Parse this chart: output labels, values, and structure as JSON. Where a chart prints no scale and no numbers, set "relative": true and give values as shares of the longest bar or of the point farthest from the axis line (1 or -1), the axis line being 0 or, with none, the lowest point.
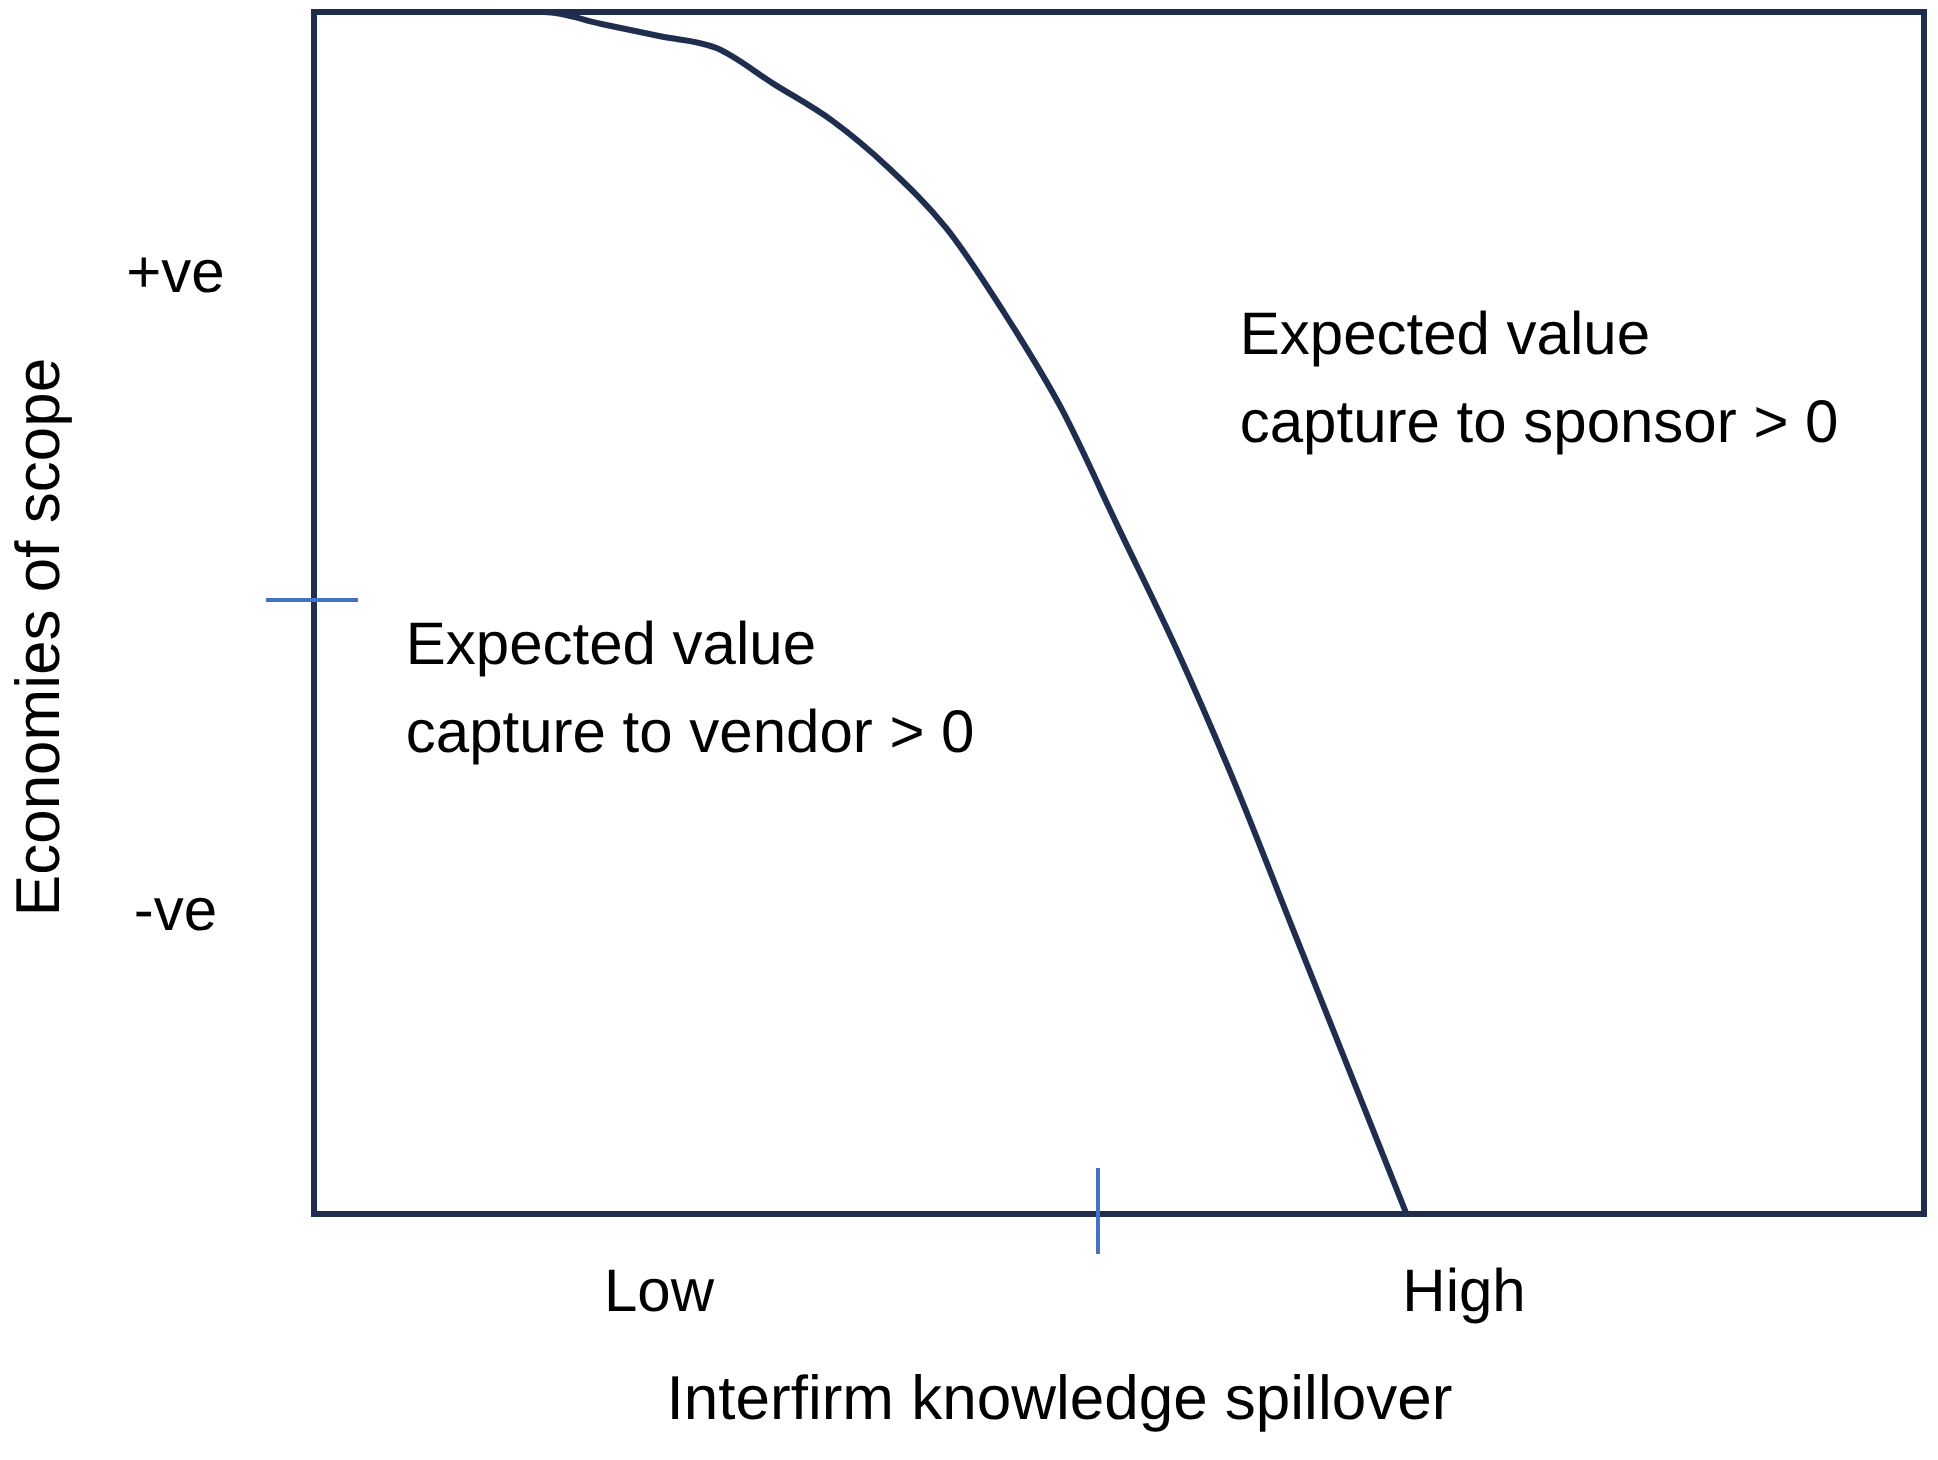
{
  "chart_data": {
    "type": "line",
    "relative": true,
    "xlabel": "Interfirm knowledge spillover",
    "ylabel": "Economies of scope",
    "categories": [
      null,
      null,
      null,
      null,
      null,
      null,
      "Low",
      null,
      null,
      null,
      null,
      null,
      null,
      null,
      null,
      null,
      null,
      null,
      null,
      null,
      "High",
      null,
      null,
      null,
      null,
      null,
      null,
      null,
      null
    ],
    "values": [
      null,
      null,
      null,
      1,
      1,
      0.99,
      0.98,
      0.97,
      0.94,
      0.91,
      0.87,
      0.82,
      0.75,
      0.67,
      0.57,
      0.47,
      0.36,
      0.24,
      0.12,
      0,
      null,
      null,
      null,
      null,
      null,
      null,
      null,
      null,
      null
    ],
    "color": "#1f2d4f",
    "marker": "none",
    "annotations": [
      "+ve",
      "Expected value\ncapture to sponsor > 0",
      "Expected value\ncapture to vendor > 0",
      "-ve"
    ]
  }
}
